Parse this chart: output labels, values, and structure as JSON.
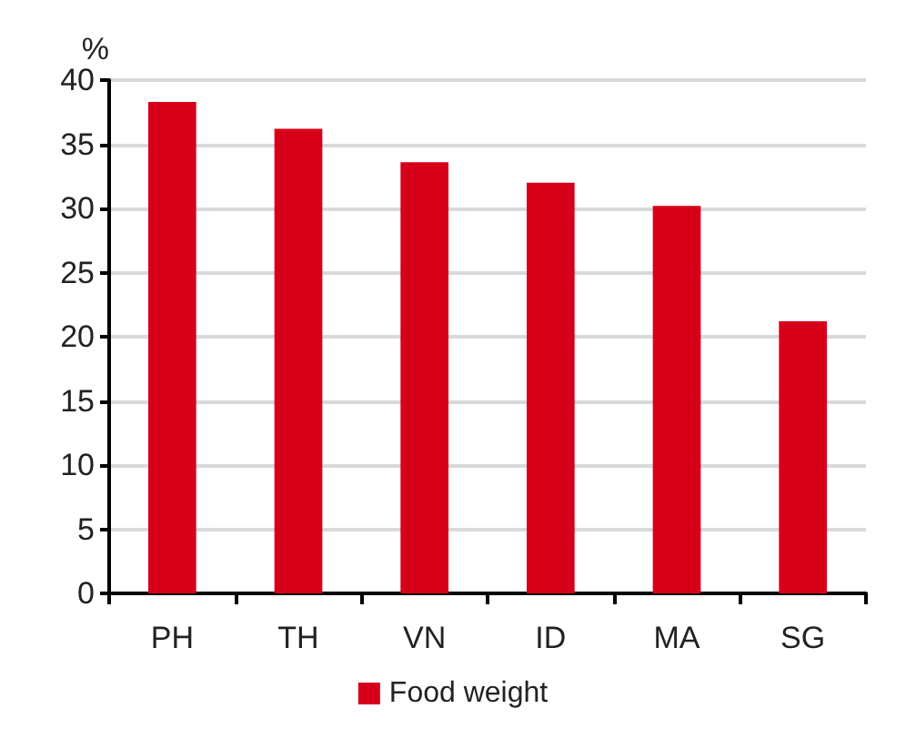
{
  "chart_data": {
    "type": "bar",
    "ylabel": "%",
    "categories": [
      "PH",
      "TH",
      "VN",
      "ID",
      "MA",
      "SG"
    ],
    "series": [
      {
        "name": "Food weight",
        "color": "#d7001a",
        "values": [
          38.3,
          36.2,
          33.6,
          32.0,
          30.2,
          21.2
        ]
      }
    ],
    "ylim": [
      0,
      40
    ],
    "yticks": [
      0,
      5,
      10,
      15,
      20,
      25,
      30,
      35,
      40
    ],
    "grid": "y",
    "legend": "bottom"
  }
}
